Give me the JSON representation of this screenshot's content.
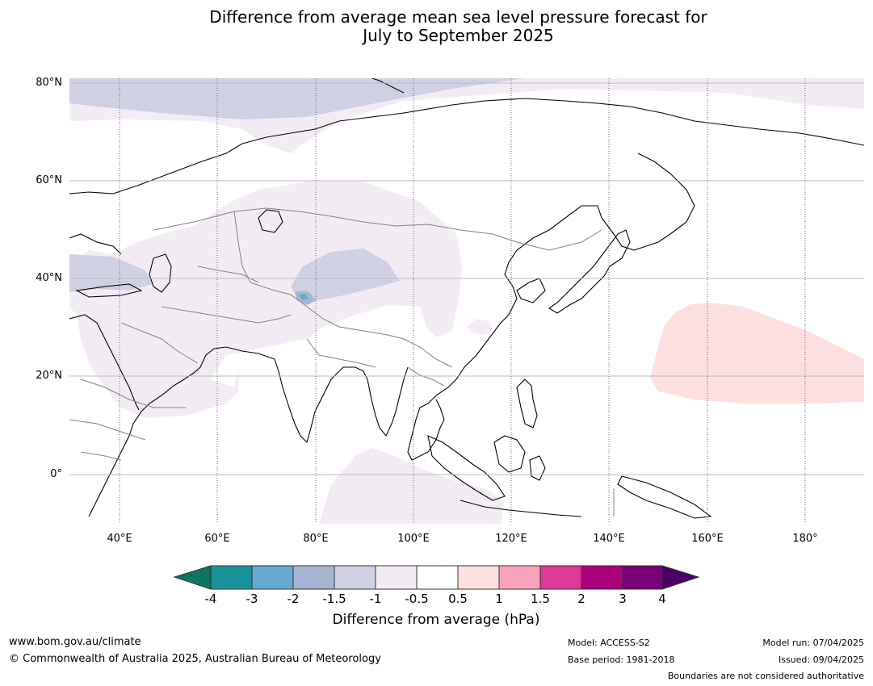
{
  "title": {
    "line1": "Difference from average mean sea level pressure forecast for",
    "line2": "July to September 2025"
  },
  "map": {
    "lat_labels": [
      "80°N",
      "60°N",
      "40°N",
      "20°N",
      "0°"
    ],
    "lon_labels": [
      "40°E",
      "60°E",
      "80°E",
      "100°E",
      "120°E",
      "140°E",
      "160°E",
      "180°"
    ],
    "region_colors": {
      "negative_1_5": "#cfd0e4",
      "negative_0_5": "#f3ecf5",
      "negative_2": "#a8b8d2",
      "negative_3": "#6aaad2",
      "positive_0_5": "#fde0df",
      "land_outline": "#000000",
      "border": "#808080"
    }
  },
  "colorbar": {
    "title": "Difference from average (hPa)",
    "ticks": [
      "-4",
      "-3",
      "-2",
      "-1.5",
      "-1",
      "-0.5",
      "0.5",
      "1",
      "1.5",
      "2",
      "3",
      "4"
    ],
    "colors": [
      "#0e7466",
      "#1a9398",
      "#66a9d1",
      "#a6b6d2",
      "#cfd0e3",
      "#f3ecf5",
      "#ffffff",
      "#fde0df",
      "#f8a2bb",
      "#de3898",
      "#ac017d",
      "#7a0177",
      "#4a0067"
    ]
  },
  "footer": {
    "website": "www.bom.gov.au/climate",
    "copyright": "© Commonwealth of Australia 2025, Australian Bureau of Meteorology",
    "model": "Model: ACCESS-S2",
    "base_period": "Base period: 1981-2018",
    "model_run": "Model run: 07/04/2025",
    "issued": "Issued: 09/04/2025",
    "disclaimer": "Boundaries are not considered authoritative"
  }
}
